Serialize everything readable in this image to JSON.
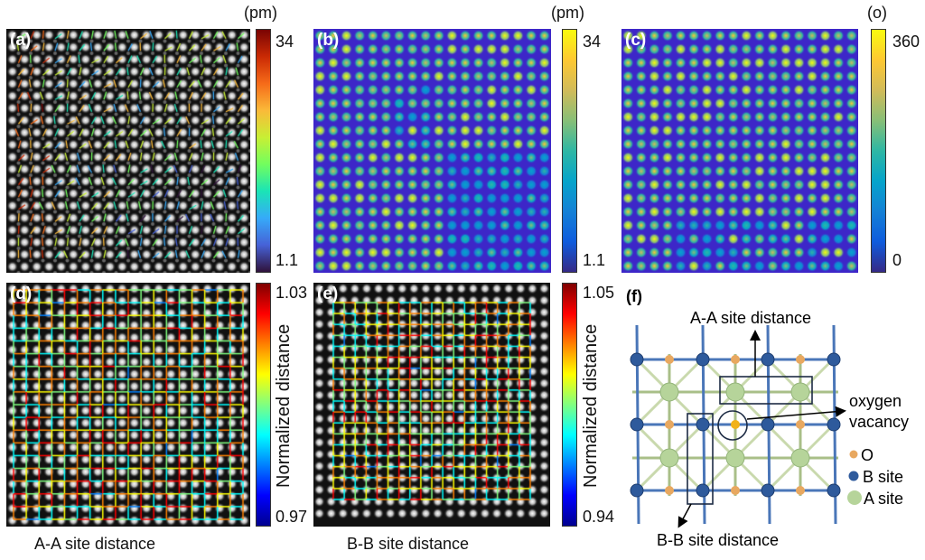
{
  "panels": {
    "a": {
      "label": "(a)",
      "unit": "(pm)",
      "cbar_max": "34",
      "cbar_min": "1.1",
      "colormap": "jet"
    },
    "b": {
      "label": "(b)",
      "unit": "(pm)",
      "cbar_max": "34",
      "cbar_min": "1.1",
      "colormap": "parula"
    },
    "c": {
      "label": "(c)",
      "unit": "(o)",
      "cbar_max": "360",
      "cbar_min": "0",
      "colormap": "parula"
    },
    "d": {
      "label": "(d)",
      "cbar_label": "Normalized distance",
      "cbar_max": "1.03",
      "cbar_min": "0.97",
      "caption": "A-A site distance",
      "colormap": "jet"
    },
    "e": {
      "label": "(e)",
      "cbar_label": "Normalized distance",
      "cbar_max": "1.05",
      "cbar_min": "0.94",
      "caption": "B-B site distance",
      "colormap": "jet"
    },
    "f": {
      "label": "(f)",
      "aa_label": "A-A site distance",
      "bb_label": "B-B site distance",
      "vacancy_line1": "oxygen",
      "vacancy_line2": "vacancy",
      "legend": [
        {
          "label": "O",
          "color": "#e8a860"
        },
        {
          "label": "B site",
          "color": "#2e5a9c"
        },
        {
          "label": "A site",
          "color": "#b6d49a"
        }
      ]
    }
  }
}
